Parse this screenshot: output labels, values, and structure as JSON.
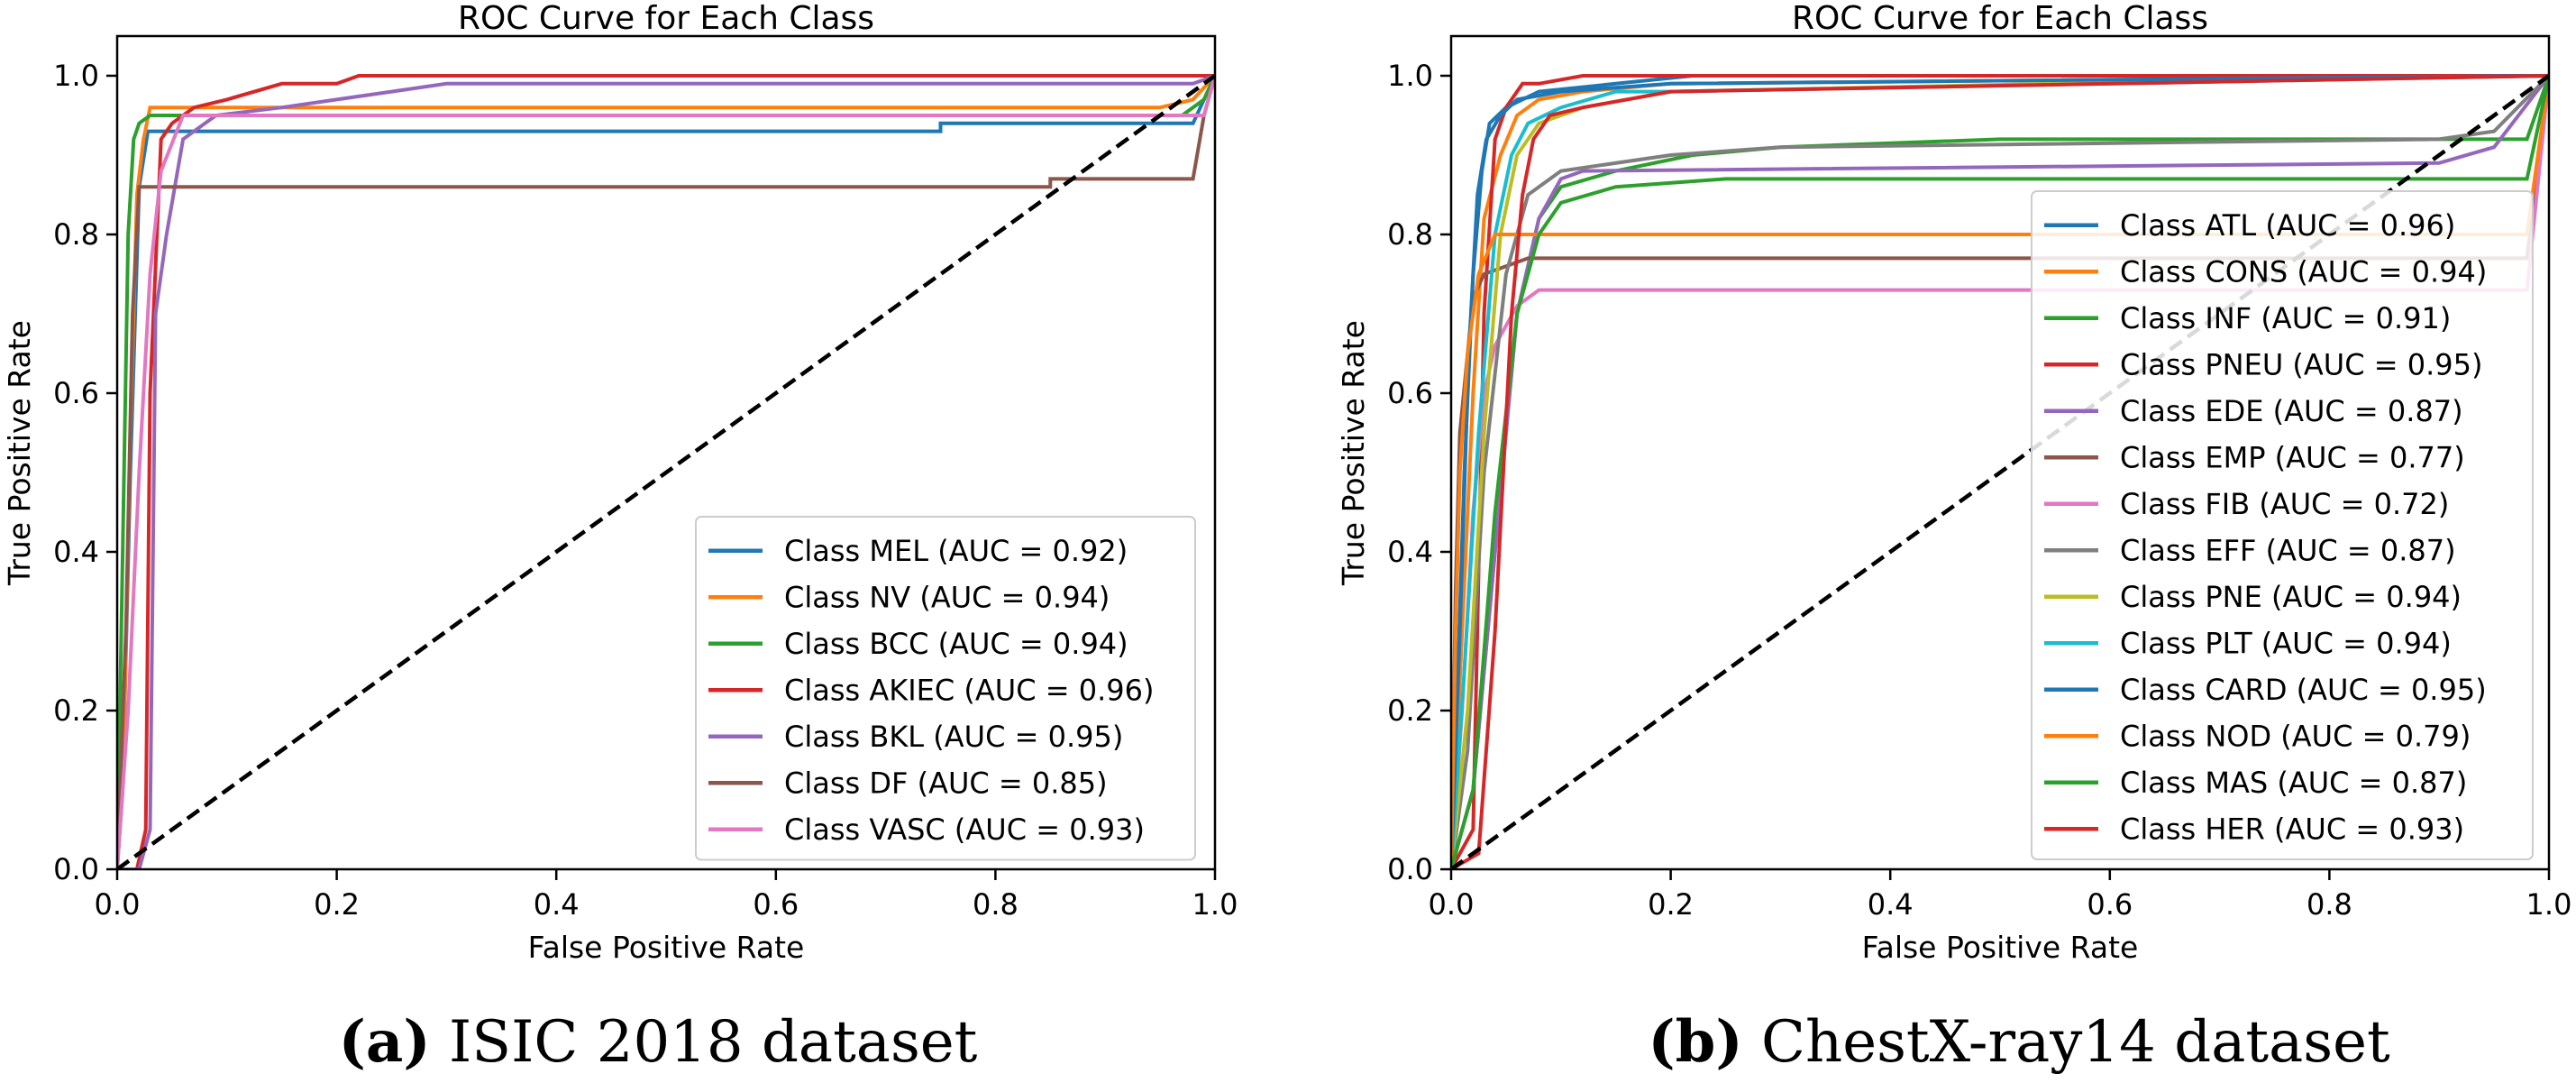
{
  "panels": [
    {
      "caption_tag": "(a)",
      "caption_text": " ISIC 2018 dataset"
    },
    {
      "caption_tag": "(b)",
      "caption_text": " ChestX-ray14 dataset"
    }
  ],
  "chart_data": [
    {
      "type": "line",
      "title": "ROC Curve for Each Class",
      "xlabel": "False Positive Rate",
      "ylabel": "True Positive Rate",
      "xlim": [
        0,
        1
      ],
      "ylim": [
        0,
        1.05
      ],
      "xticks": [
        "0.0",
        "0.2",
        "0.4",
        "0.6",
        "0.8",
        "1.0"
      ],
      "yticks": [
        "0.0",
        "0.2",
        "0.4",
        "0.6",
        "0.8",
        "1.0"
      ],
      "grid": false,
      "legend_position": "lower-right",
      "diagonal": {
        "x": [
          0,
          1
        ],
        "y": [
          0,
          1
        ],
        "color": "#000000",
        "style": "dashed"
      },
      "series": [
        {
          "name": "Class MEL (AUC = 0.92)",
          "color": "#1f77b4",
          "x": [
            0,
            0.005,
            0.012,
            0.02,
            0.028,
            0.028,
            0.3,
            0.75,
            0.75,
            0.98,
            1.0
          ],
          "y": [
            0,
            0.1,
            0.5,
            0.86,
            0.93,
            0.93,
            0.93,
            0.93,
            0.94,
            0.94,
            1.0
          ]
        },
        {
          "name": "Class NV (AUC = 0.94)",
          "color": "#ff7f0e",
          "x": [
            0,
            0.006,
            0.012,
            0.018,
            0.024,
            0.03,
            0.95,
            0.98,
            1.0
          ],
          "y": [
            0,
            0.15,
            0.55,
            0.85,
            0.92,
            0.96,
            0.96,
            0.97,
            1.0
          ]
        },
        {
          "name": "Class BCC (AUC = 0.94)",
          "color": "#2ca02c",
          "x": [
            0,
            0.005,
            0.01,
            0.015,
            0.02,
            0.03,
            0.97,
            0.99,
            1.0
          ],
          "y": [
            0,
            0.4,
            0.8,
            0.92,
            0.94,
            0.95,
            0.95,
            0.97,
            1.0
          ]
        },
        {
          "name": "Class AKIEC (AUC = 0.96)",
          "color": "#d62728",
          "x": [
            0,
            0.018,
            0.026,
            0.03,
            0.04,
            0.05,
            0.07,
            0.1,
            0.15,
            0.2,
            0.22,
            1.0
          ],
          "y": [
            0,
            0,
            0.05,
            0.6,
            0.92,
            0.94,
            0.96,
            0.97,
            0.99,
            0.99,
            1.0,
            1.0
          ]
        },
        {
          "name": "Class BKL (AUC = 0.95)",
          "color": "#9467bd",
          "x": [
            0,
            0.02,
            0.03,
            0.035,
            0.045,
            0.06,
            0.09,
            0.15,
            0.2,
            0.25,
            0.3,
            0.98,
            1.0
          ],
          "y": [
            0,
            0,
            0.05,
            0.7,
            0.8,
            0.92,
            0.95,
            0.96,
            0.97,
            0.98,
            0.99,
            0.99,
            1.0
          ]
        },
        {
          "name": "Class DF (AUC = 0.85)",
          "color": "#8c564b",
          "x": [
            0,
            0.008,
            0.014,
            0.02,
            0.85,
            0.85,
            0.98,
            0.99,
            1.0
          ],
          "y": [
            0,
            0.3,
            0.7,
            0.86,
            0.86,
            0.87,
            0.87,
            0.95,
            1.0
          ]
        },
        {
          "name": "Class VASC (AUC = 0.93)",
          "color": "#e377c2",
          "x": [
            0,
            0.01,
            0.02,
            0.03,
            0.04,
            0.06,
            0.99,
            1.0
          ],
          "y": [
            0,
            0.2,
            0.5,
            0.75,
            0.88,
            0.95,
            0.95,
            1.0
          ]
        }
      ]
    },
    {
      "type": "line",
      "title": "ROC Curve for Each Class",
      "xlabel": "False Positive Rate",
      "ylabel": "True Positive Rate",
      "xlim": [
        0,
        1
      ],
      "ylim": [
        0,
        1.05
      ],
      "xticks": [
        "0.0",
        "0.2",
        "0.4",
        "0.6",
        "0.8",
        "1.0"
      ],
      "yticks": [
        "0.0",
        "0.2",
        "0.4",
        "0.6",
        "0.8",
        "1.0"
      ],
      "grid": false,
      "legend_position": "center-right",
      "diagonal": {
        "x": [
          0,
          1
        ],
        "y": [
          0,
          1
        ],
        "color": "#000000",
        "style": "dashed"
      },
      "series": [
        {
          "name": "Class ATL (AUC = 0.96)",
          "color": "#1f77b4",
          "x": [
            0,
            0.005,
            0.012,
            0.02,
            0.028,
            0.035,
            0.05,
            0.08,
            0.15,
            0.22,
            0.98,
            1.0
          ],
          "y": [
            0,
            0.2,
            0.5,
            0.75,
            0.88,
            0.94,
            0.96,
            0.98,
            0.99,
            1.0,
            1.0,
            1.0
          ]
        },
        {
          "name": "Class CONS (AUC = 0.94)",
          "color": "#ff7f0e",
          "x": [
            0,
            0.01,
            0.02,
            0.03,
            0.045,
            0.06,
            0.08,
            0.12,
            0.2,
            1.0
          ],
          "y": [
            0,
            0.3,
            0.6,
            0.82,
            0.9,
            0.95,
            0.97,
            0.98,
            0.99,
            1.0
          ]
        },
        {
          "name": "Class INF (AUC = 0.91)",
          "color": "#2ca02c",
          "x": [
            0,
            0.02,
            0.04,
            0.06,
            0.08,
            0.1,
            0.15,
            0.22,
            0.3,
            0.5,
            0.98,
            1.0
          ],
          "y": [
            0,
            0.1,
            0.4,
            0.7,
            0.82,
            0.86,
            0.88,
            0.9,
            0.91,
            0.92,
            0.92,
            1.0
          ]
        },
        {
          "name": "Class PNEU (AUC = 0.95)",
          "color": "#d62728",
          "x": [
            0,
            0.02,
            0.03,
            0.04,
            0.05,
            0.055,
            0.065,
            0.08,
            0.12,
            0.25,
            0.4,
            1.0
          ],
          "y": [
            0,
            0.05,
            0.7,
            0.92,
            0.96,
            0.97,
            0.99,
            0.99,
            1.0,
            1.0,
            1.0,
            1.0
          ]
        },
        {
          "name": "Class EDE (AUC = 0.87)",
          "color": "#9467bd",
          "x": [
            0,
            0.02,
            0.04,
            0.06,
            0.08,
            0.1,
            0.12,
            0.9,
            0.95,
            1.0
          ],
          "y": [
            0,
            0.1,
            0.4,
            0.7,
            0.82,
            0.87,
            0.88,
            0.89,
            0.91,
            1.0
          ]
        },
        {
          "name": "Class EMP (AUC = 0.77)",
          "color": "#8c564b",
          "x": [
            0,
            0.004,
            0.008,
            0.015,
            0.02,
            0.03,
            0.05,
            0.07,
            0.1,
            0.98,
            1.0
          ],
          "y": [
            0,
            0.35,
            0.55,
            0.65,
            0.72,
            0.75,
            0.76,
            0.77,
            0.77,
            0.77,
            1.0
          ]
        },
        {
          "name": "Class FIB (AUC = 0.72)",
          "color": "#e377c2",
          "x": [
            0,
            0.01,
            0.02,
            0.03,
            0.04,
            0.06,
            0.08,
            0.98,
            1.0
          ],
          "y": [
            0,
            0.2,
            0.45,
            0.6,
            0.66,
            0.71,
            0.73,
            0.73,
            1.0
          ]
        },
        {
          "name": "Class EFF (AUC = 0.87)",
          "color": "#7f7f7f",
          "x": [
            0,
            0.015,
            0.03,
            0.05,
            0.07,
            0.1,
            0.2,
            0.3,
            0.9,
            0.95,
            1.0
          ],
          "y": [
            0,
            0.15,
            0.5,
            0.75,
            0.85,
            0.88,
            0.9,
            0.91,
            0.92,
            0.93,
            1.0
          ]
        },
        {
          "name": "Class PNE (AUC = 0.94)",
          "color": "#bcbd22",
          "x": [
            0,
            0.015,
            0.03,
            0.045,
            0.06,
            0.08,
            0.12,
            0.2,
            0.55,
            1.0
          ],
          "y": [
            0,
            0.2,
            0.55,
            0.8,
            0.9,
            0.94,
            0.96,
            0.98,
            0.99,
            1.0
          ]
        },
        {
          "name": "Class PLT (AUC = 0.94)",
          "color": "#17becf",
          "x": [
            0,
            0.012,
            0.025,
            0.04,
            0.055,
            0.07,
            0.1,
            0.15,
            0.2,
            1.0
          ],
          "y": [
            0,
            0.25,
            0.55,
            0.8,
            0.9,
            0.94,
            0.96,
            0.98,
            0.98,
            1.0
          ]
        },
        {
          "name": "Class CARD (AUC = 0.95)",
          "color": "#1f77b4",
          "x": [
            0,
            0.008,
            0.016,
            0.024,
            0.032,
            0.045,
            0.06,
            0.1,
            0.2,
            1.0
          ],
          "y": [
            0,
            0.3,
            0.65,
            0.85,
            0.92,
            0.95,
            0.97,
            0.98,
            0.99,
            1.0
          ]
        },
        {
          "name": "Class NOD (AUC = 0.79)",
          "color": "#ff7f0e",
          "x": [
            0,
            0.004,
            0.008,
            0.015,
            0.025,
            0.04,
            0.98,
            1.0
          ],
          "y": [
            0,
            0.3,
            0.5,
            0.65,
            0.75,
            0.8,
            0.8,
            1.0
          ]
        },
        {
          "name": "Class MAS (AUC = 0.87)",
          "color": "#2ca02c",
          "x": [
            0,
            0.02,
            0.04,
            0.06,
            0.08,
            0.1,
            0.15,
            0.25,
            0.5,
            0.98,
            1.0
          ],
          "y": [
            0,
            0.1,
            0.45,
            0.7,
            0.8,
            0.84,
            0.86,
            0.87,
            0.87,
            0.87,
            1.0
          ]
        },
        {
          "name": "Class HER (AUC = 0.93)",
          "color": "#d62728",
          "x": [
            0,
            0.025,
            0.04,
            0.055,
            0.065,
            0.075,
            0.09,
            0.12,
            0.2,
            1.0
          ],
          "y": [
            0,
            0.02,
            0.3,
            0.7,
            0.85,
            0.92,
            0.95,
            0.96,
            0.98,
            1.0
          ]
        }
      ]
    }
  ]
}
